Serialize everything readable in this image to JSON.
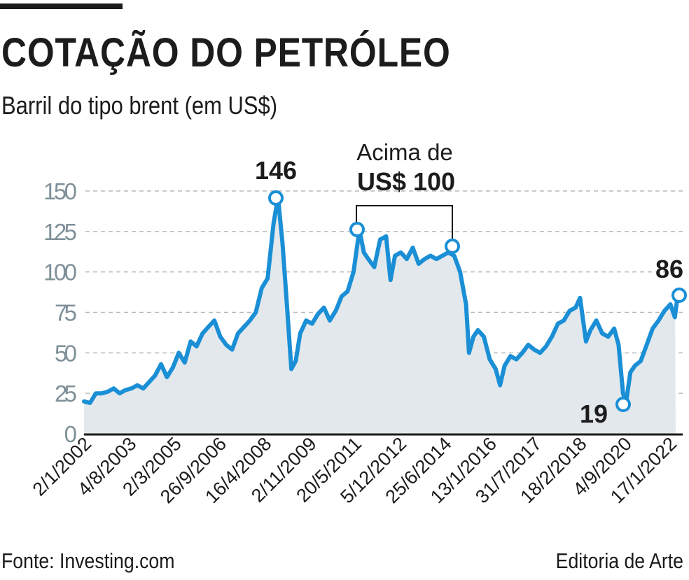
{
  "header": {
    "title": "COTAÇÃO DO PETRÓLEO",
    "subtitle": "Barril do tipo brent (em US$)"
  },
  "footer": {
    "source": "Fonte: Investing.com",
    "credit": "Editoria de Arte"
  },
  "colors": {
    "line": "#1a8fd6",
    "fill": "#e3e8ec",
    "grid": "#b5b9bc",
    "axis_tick_text": "#7f9099",
    "text": "#1c1c1c"
  },
  "annotations": {
    "peak_label": "146",
    "above100_line1": "Acima de",
    "above100_line2": "US$ 100",
    "low_label": "19",
    "last_label": "86"
  },
  "chart_data": {
    "type": "area",
    "title": "COTAÇÃO DO PETRÓLEO",
    "subtitle": "Barril do tipo brent (em US$)",
    "xlabel": "",
    "ylabel": "",
    "ylim": [
      0,
      150
    ],
    "yticks": [
      0,
      25,
      50,
      75,
      100,
      125,
      150
    ],
    "grid": true,
    "legend": null,
    "x_tick_labels": [
      "2/1/2002",
      "4/8/2003",
      "2/3/2005",
      "26/9/2006",
      "16/4/2008",
      "2/11/2009",
      "20/5/2011",
      "5/12/2012",
      "25/6/2014",
      "13/1/2016",
      "31/7/2017",
      "18/2/2018",
      "4/9/2020",
      "17/1/2022"
    ],
    "annotations": [
      {
        "label": "146",
        "value": 146,
        "approx_date": "jul/2008"
      },
      {
        "label": "Acima de US$ 100",
        "range_start_value": 126,
        "range_end_value": 115,
        "approx_range": "2011–2014"
      },
      {
        "label": "19",
        "value": 19,
        "approx_date": "abr/2020"
      },
      {
        "label": "86",
        "value": 86,
        "approx_date": "jan/2022"
      }
    ],
    "series": [
      {
        "name": "Brent (US$)",
        "x": [
          2002.0,
          2002.2,
          2002.4,
          2002.6,
          2002.8,
          2003.0,
          2003.2,
          2003.4,
          2003.6,
          2003.8,
          2004.0,
          2004.2,
          2004.4,
          2004.6,
          2004.8,
          2005.0,
          2005.2,
          2005.4,
          2005.6,
          2005.8,
          2006.0,
          2006.2,
          2006.4,
          2006.6,
          2006.8,
          2007.0,
          2007.2,
          2007.4,
          2007.6,
          2007.8,
          2008.0,
          2008.2,
          2008.4,
          2008.55,
          2008.7,
          2008.85,
          2009.0,
          2009.15,
          2009.3,
          2009.5,
          2009.7,
          2009.9,
          2010.1,
          2010.3,
          2010.5,
          2010.7,
          2010.9,
          2011.1,
          2011.3,
          2011.45,
          2011.6,
          2011.8,
          2012.0,
          2012.2,
          2012.35,
          2012.5,
          2012.7,
          2012.9,
          2013.1,
          2013.3,
          2013.5,
          2013.7,
          2013.9,
          2014.1,
          2014.3,
          2014.5,
          2014.7,
          2014.9,
          2015.0,
          2015.15,
          2015.3,
          2015.5,
          2015.7,
          2015.9,
          2016.05,
          2016.2,
          2016.4,
          2016.6,
          2016.8,
          2017.0,
          2017.2,
          2017.4,
          2017.6,
          2017.8,
          2018.0,
          2018.2,
          2018.4,
          2018.6,
          2018.75,
          2018.95,
          2019.1,
          2019.3,
          2019.5,
          2019.7,
          2019.9,
          2020.05,
          2020.2,
          2020.3,
          2020.45,
          2020.6,
          2020.8,
          2021.0,
          2021.2,
          2021.4,
          2021.6,
          2021.8,
          2021.95,
          2022.05
        ],
        "values": [
          20,
          19,
          25,
          25,
          26,
          28,
          25,
          27,
          28,
          30,
          28,
          32,
          36,
          43,
          35,
          41,
          50,
          44,
          57,
          54,
          62,
          66,
          70,
          60,
          55,
          52,
          62,
          66,
          70,
          75,
          90,
          96,
          130,
          146,
          118,
          80,
          40,
          45,
          62,
          70,
          68,
          74,
          78,
          70,
          76,
          85,
          88,
          100,
          126,
          112,
          108,
          103,
          120,
          122,
          95,
          110,
          112,
          108,
          115,
          105,
          108,
          110,
          108,
          110,
          112,
          110,
          100,
          80,
          50,
          60,
          64,
          60,
          46,
          40,
          30,
          42,
          48,
          46,
          50,
          55,
          52,
          50,
          54,
          60,
          68,
          70,
          76,
          78,
          84,
          57,
          64,
          70,
          62,
          60,
          65,
          55,
          25,
          19,
          38,
          42,
          45,
          55,
          65,
          70,
          76,
          80,
          72,
          86
        ]
      }
    ]
  }
}
